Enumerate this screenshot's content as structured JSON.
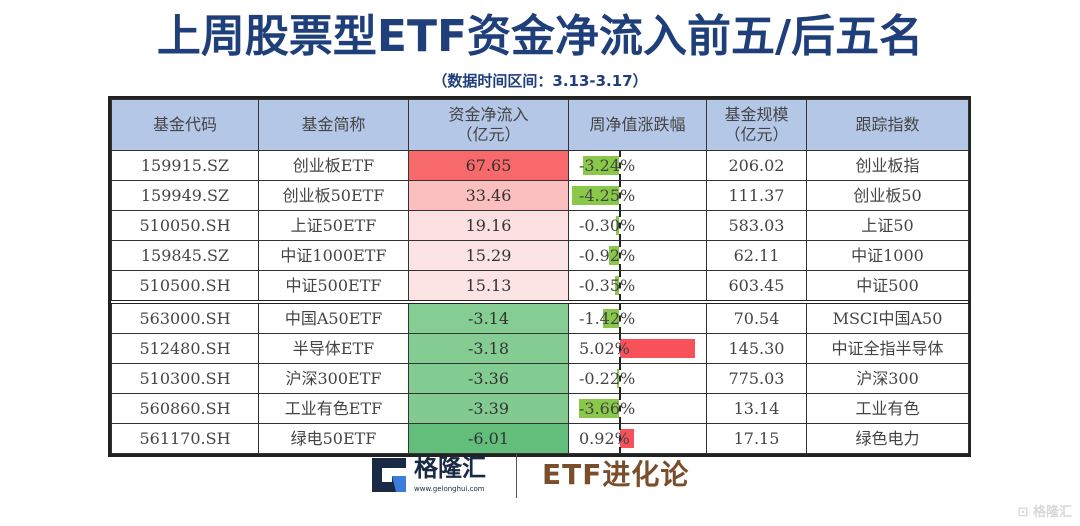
{
  "title": "上周股票型ETF资金净流入前五/后五名",
  "subtitle": "（数据时间区间：3.13-3.17）",
  "table": {
    "headers": [
      "基金代码",
      "基金简称",
      "资金净流入（亿元）",
      "周净值涨跌幅",
      "基金规模（亿元）",
      "跟踪指数"
    ],
    "header_lines": {
      "inflow": [
        "资金净流入",
        "（亿元）"
      ],
      "scale": [
        "基金规模",
        "（亿元）"
      ]
    },
    "rows": [
      {
        "code": "159915.SZ",
        "name": "创业板ETF",
        "inflow": "67.65",
        "change": "-3.24%",
        "change_value": -3.24,
        "scale": "206.02",
        "index": "创业板指",
        "inflow_color": "#f8696b"
      },
      {
        "code": "159949.SZ",
        "name": "创业板50ETF",
        "inflow": "33.46",
        "change": "-4.25%",
        "change_value": -4.25,
        "scale": "111.37",
        "index": "创业板50",
        "inflow_color": "#fbbfc0"
      },
      {
        "code": "510050.SH",
        "name": "上证50ETF",
        "inflow": "19.16",
        "change": "-0.30%",
        "change_value": -0.3,
        "scale": "583.03",
        "index": "上证50",
        "inflow_color": "#fcdfe0"
      },
      {
        "code": "159845.SZ",
        "name": "中证1000ETF",
        "inflow": "15.29",
        "change": "-0.92%",
        "change_value": -0.92,
        "scale": "62.11",
        "index": "中证1000",
        "inflow_color": "#fce3e4"
      },
      {
        "code": "510500.SH",
        "name": "中证500ETF",
        "inflow": "15.13",
        "change": "-0.35%",
        "change_value": -0.35,
        "scale": "603.45",
        "index": "中证500",
        "inflow_color": "#fce4e5"
      },
      {
        "code": "563000.SH",
        "name": "中国A50ETF",
        "inflow": "-3.14",
        "change": "-1.42%",
        "change_value": -1.42,
        "scale": "70.54",
        "index": "MSCI中国A50",
        "inflow_color": "#86cd94"
      },
      {
        "code": "512480.SH",
        "name": "半导体ETF",
        "inflow": "-3.18",
        "change": "5.02%",
        "change_value": 5.02,
        "scale": "145.30",
        "index": "中证全指半导体",
        "inflow_color": "#85cc93"
      },
      {
        "code": "510300.SH",
        "name": "沪深300ETF",
        "inflow": "-3.36",
        "change": "-0.22%",
        "change_value": -0.22,
        "scale": "775.03",
        "index": "沪深300",
        "inflow_color": "#82cb91"
      },
      {
        "code": "560860.SH",
        "name": "工业有色ETF",
        "inflow": "-3.39",
        "change": "-3.66%",
        "change_value": -3.66,
        "scale": "13.14",
        "index": "工业有色",
        "inflow_color": "#82ca90"
      },
      {
        "code": "561170.SH",
        "name": "绿电50ETF",
        "inflow": "-6.01",
        "change": "0.92%",
        "change_value": 0.92,
        "scale": "17.15",
        "index": "绿色电力",
        "inflow_color": "#63be7b"
      }
    ]
  },
  "colors": {
    "title": "#1f3f7a",
    "header_bg": "#b4c7e7",
    "bar_negative": "#8ac84a",
    "bar_positive": "#f8515a",
    "brand": "#7a4e2a"
  },
  "footer": {
    "logo_name": "格隆汇",
    "logo_url": "www.gelonghui.com",
    "brand": "ETF进化论",
    "watermark": "格隆汇"
  }
}
